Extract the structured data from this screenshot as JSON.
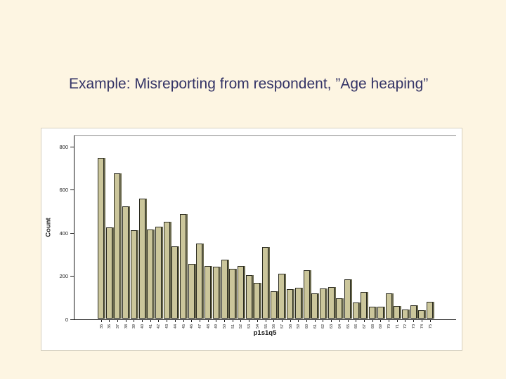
{
  "slide": {
    "title": "Example: Misreporting from respondent, ”Age heaping”"
  },
  "colors": {
    "slide_background": "#FDF5E2",
    "title_text": "#333366",
    "panel_background": "#FFFFFF",
    "axis": "#1A1A1A",
    "bar_fill": "#CBC69B",
    "bar_shadow": "#6C6B50",
    "bar_border": "#2B2B20"
  },
  "chart_data": {
    "type": "bar",
    "title": "",
    "xlabel": "p1s1q5",
    "ylabel": "Count",
    "categories": [
      "35",
      "36",
      "37",
      "38",
      "39",
      "40",
      "41",
      "42",
      "43",
      "44",
      "45",
      "46",
      "47",
      "48",
      "49",
      "50",
      "51",
      "52",
      "53",
      "54",
      "55",
      "56",
      "57",
      "58",
      "59",
      "60",
      "61",
      "62",
      "63",
      "64",
      "65",
      "66",
      "67",
      "68",
      "69",
      "70",
      "71",
      "72",
      "73",
      "74",
      "75"
    ],
    "values": [
      745,
      425,
      675,
      520,
      410,
      558,
      415,
      428,
      450,
      336,
      487,
      253,
      350,
      245,
      240,
      275,
      230,
      245,
      202,
      165,
      331,
      127,
      210,
      137,
      144,
      226,
      116,
      139,
      146,
      95,
      181,
      74,
      125,
      56,
      56,
      117,
      59,
      43,
      62,
      39,
      78
    ],
    "yticks": [
      0,
      200,
      400,
      600,
      800
    ],
    "ylim": [
      0,
      854
    ],
    "grid": false,
    "legend": false
  }
}
